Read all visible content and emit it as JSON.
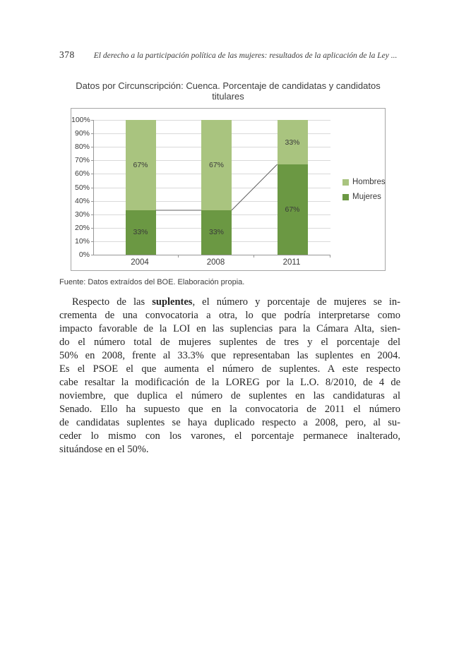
{
  "header": {
    "page_number": "378",
    "running_title": "El derecho a la participación política de las mujeres: resultados de la aplicación de la Ley ..."
  },
  "figure": {
    "title_line1": "Datos por Circunscripción: Cuenca. Porcentaje de candidatas y candidatos",
    "title_line2": "titulares",
    "source": "Fuente: Datos extraídos del BOE. Elaboración propia."
  },
  "chart_data": {
    "type": "bar",
    "subtype": "stacked-100-percent",
    "title": "Datos por Circunscripción: Cuenca. Porcentaje de candidatas y candidatos titulares",
    "categories": [
      "2004",
      "2008",
      "2011"
    ],
    "series": [
      {
        "name": "Hombres",
        "color": "#a9c47f",
        "values": [
          67,
          67,
          33
        ]
      },
      {
        "name": "Mujeres",
        "color": "#6b9843",
        "values": [
          33,
          33,
          67
        ]
      }
    ],
    "stack_bottom_to_top": [
      "Mujeres",
      "Hombres"
    ],
    "connector_series": "Mujeres",
    "data_label_format": "{v}%",
    "y_ticks": [
      "0%",
      "10%",
      "20%",
      "30%",
      "40%",
      "50%",
      "60%",
      "70%",
      "80%",
      "90%",
      "100%"
    ],
    "ylim": [
      0,
      100
    ],
    "grid": true,
    "legend_position": "right"
  },
  "paragraph": {
    "line1_pre": "Respecto de las ",
    "line1_bold": "suplentes",
    "line1_post": ", el número y porcentaje de mujeres se in-",
    "lines": [
      "crementa de una convocatoria a otra, lo que podría interpretarse como",
      "impacto favorable de la LOI en las suplencias para la Cámara Alta, sien-",
      "do el número total de mujeres suplentes de tres y el porcentaje del",
      "50% en 2008, frente al 33.3% que representaban las suplentes en 2004.",
      "Es el PSOE el que aumenta el número de suplentes. A este respecto",
      "cabe resaltar la modificación de la LOREG por la L.O. 8/2010, de 4 de",
      "noviembre, que duplica el número de suplentes en las candidaturas al",
      "Senado. Ello ha supuesto que en la convocatoria de 2011 el número",
      "de candidatas suplentes se haya duplicado respecto a 2008, pero, al su-",
      "ceder lo mismo con los varones, el porcentaje permanece inalterado,",
      "situándose en el 50%."
    ]
  }
}
